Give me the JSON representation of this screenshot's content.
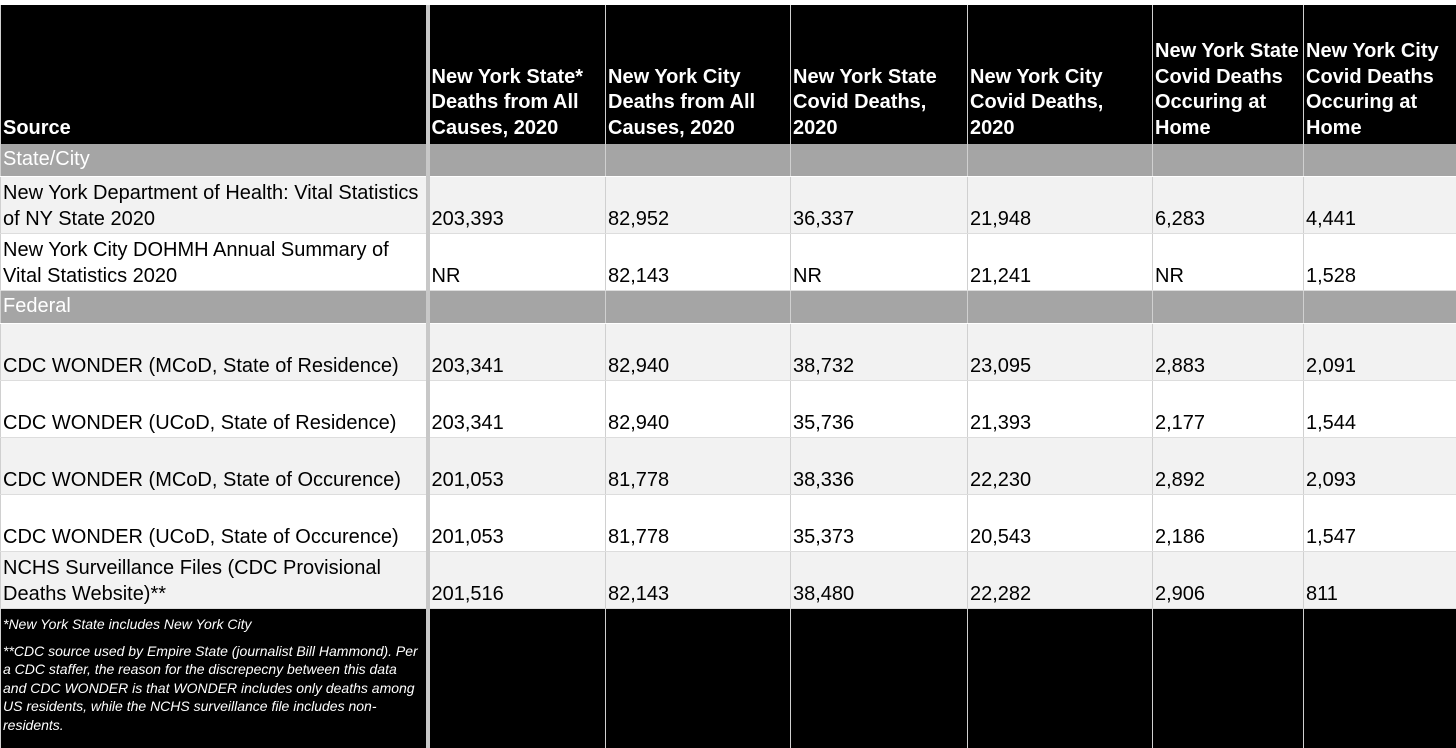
{
  "header": {
    "columns": [
      "Source",
      "New York State* Deaths from All Causes, 2020",
      "New York City Deaths from All Causes, 2020",
      "New York State Covid Deaths, 2020",
      "New York City Covid Deaths, 2020",
      "New York State Covid Deaths Occuring at Home",
      "New York City Covid Deaths Occuring at Home"
    ]
  },
  "sections": [
    {
      "title": "State/City",
      "rows": [
        [
          "New York Department of Health: Vital Statistics of NY State 2020",
          "203,393",
          "82,952",
          "36,337",
          "21,948",
          "6,283",
          "4,441"
        ],
        [
          "New York City DOHMH Annual Summary of Vital Statistics 2020",
          "NR",
          "82,143",
          "NR",
          "21,241",
          "NR",
          "1,528"
        ]
      ]
    },
    {
      "title": "Federal",
      "rows": [
        [
          "CDC WONDER (MCoD, State of Residence)",
          "203,341",
          "82,940",
          "38,732",
          "23,095",
          "2,883",
          "2,091"
        ],
        [
          "CDC WONDER (UCoD, State of Residence)",
          "203,341",
          "82,940",
          "35,736",
          "21,393",
          "2,177",
          "1,544"
        ],
        [
          "CDC WONDER (MCoD, State of Occurence)",
          "201,053",
          "81,778",
          "38,336",
          "22,230",
          "2,892",
          "2,093"
        ],
        [
          "CDC WONDER (UCoD, State of Occurence)",
          "201,053",
          "81,778",
          "35,373",
          "20,543",
          "2,186",
          "1,547"
        ],
        [
          "NCHS Surveillance Files (CDC Provisional Deaths Website)**",
          "201,516",
          "82,143",
          "38,480",
          "22,282",
          "2,906",
          "811"
        ]
      ]
    }
  ],
  "footnotes": [
    "*New York State includes New York City",
    "**CDC source used by Empire State (journalist Bill Hammond). Per a CDC staffer, the reason for the discrepecny between this data and CDC WONDER is that WONDER includes only deaths among US residents, while the NCHS surveillance file includes non-residents."
  ]
}
